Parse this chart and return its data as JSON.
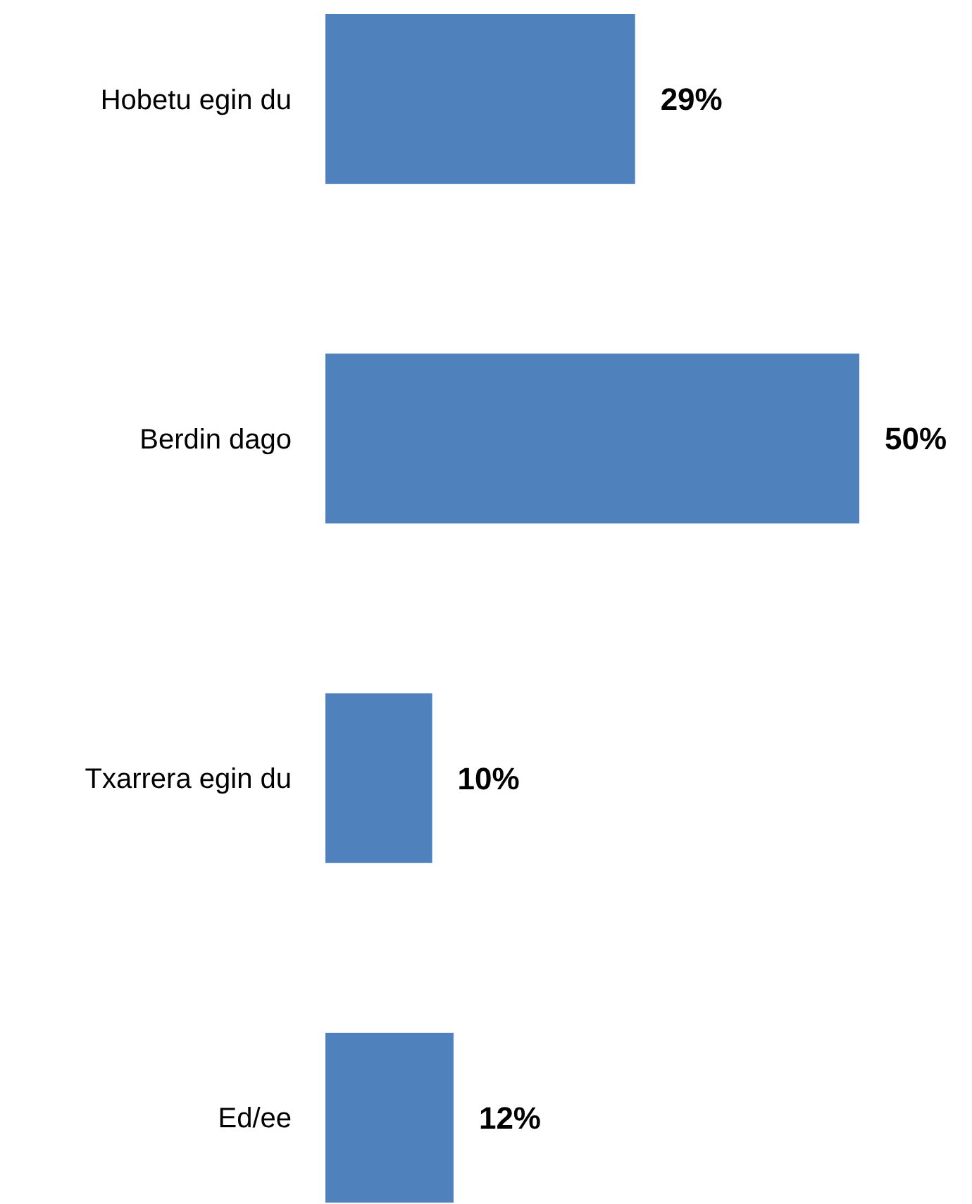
{
  "chart_data": {
    "type": "bar",
    "orientation": "horizontal",
    "categories": [
      "Hobetu egin du",
      "Berdin dago",
      "Txarrera egin du",
      "Ed/ee"
    ],
    "values": [
      29,
      50,
      10,
      12
    ],
    "color": "#4f81bd",
    "value_labels": [
      "29%",
      "50%",
      "10%",
      "12%"
    ]
  }
}
